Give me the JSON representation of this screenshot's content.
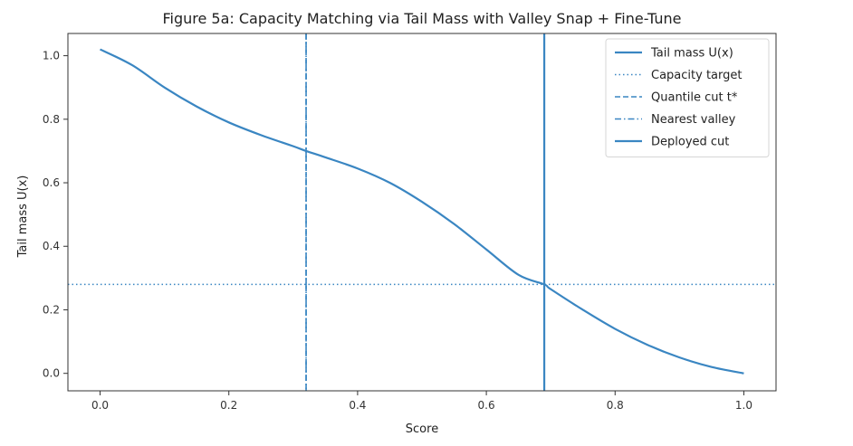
{
  "chart_data": {
    "type": "line",
    "title": "Figure 5a: Capacity Matching via Tail Mass with Valley Snap + Fine-Tune",
    "xlabel": "Score",
    "ylabel": "Tail mass U(x)",
    "xlim": [
      -0.05,
      1.05
    ],
    "ylim": [
      -0.055,
      1.07
    ],
    "xticks": [
      0.0,
      0.2,
      0.4,
      0.6,
      0.8,
      1.0
    ],
    "xtick_labels": [
      "0.0",
      "0.2",
      "0.4",
      "0.6",
      "0.8",
      "1.0"
    ],
    "yticks": [
      0.0,
      0.2,
      0.4,
      0.6,
      0.8,
      1.0
    ],
    "ytick_labels": [
      "0.0",
      "0.2",
      "0.4",
      "0.6",
      "0.8",
      "1.0"
    ],
    "grid": false,
    "legend_position": "top-right",
    "colors": {
      "line": "#3a86c2",
      "text": "#222222",
      "axis": "#333333"
    },
    "series": [
      {
        "name": "Tail mass U(x)",
        "style": "solid",
        "x": [
          0.0,
          0.05,
          0.1,
          0.15,
          0.2,
          0.25,
          0.3,
          0.32,
          0.35,
          0.4,
          0.45,
          0.5,
          0.55,
          0.6,
          0.65,
          0.69,
          0.7,
          0.75,
          0.8,
          0.85,
          0.9,
          0.95,
          1.0
        ],
        "y": [
          1.02,
          0.97,
          0.9,
          0.84,
          0.79,
          0.75,
          0.715,
          0.7,
          0.68,
          0.645,
          0.6,
          0.54,
          0.47,
          0.39,
          0.31,
          0.28,
          0.265,
          0.2,
          0.14,
          0.09,
          0.05,
          0.02,
          0.0
        ]
      }
    ],
    "reference_lines": [
      {
        "name": "Capacity target",
        "orientation": "horizontal",
        "value": 0.28,
        "style": "dotted"
      },
      {
        "name": "Quantile cut t*",
        "orientation": "vertical",
        "value": 0.32,
        "style": "dashed"
      },
      {
        "name": "Nearest valley",
        "orientation": "vertical",
        "value": 0.32,
        "style": "dashdot"
      },
      {
        "name": "Deployed cut",
        "orientation": "vertical",
        "value": 0.69,
        "style": "solid"
      }
    ],
    "legend": [
      {
        "label": "Tail mass U(x)",
        "style": "solid"
      },
      {
        "label": "Capacity target",
        "style": "dotted"
      },
      {
        "label": "Quantile cut t*",
        "style": "dashed"
      },
      {
        "label": "Nearest valley",
        "style": "dashdot"
      },
      {
        "label": "Deployed cut",
        "style": "solid"
      }
    ]
  }
}
